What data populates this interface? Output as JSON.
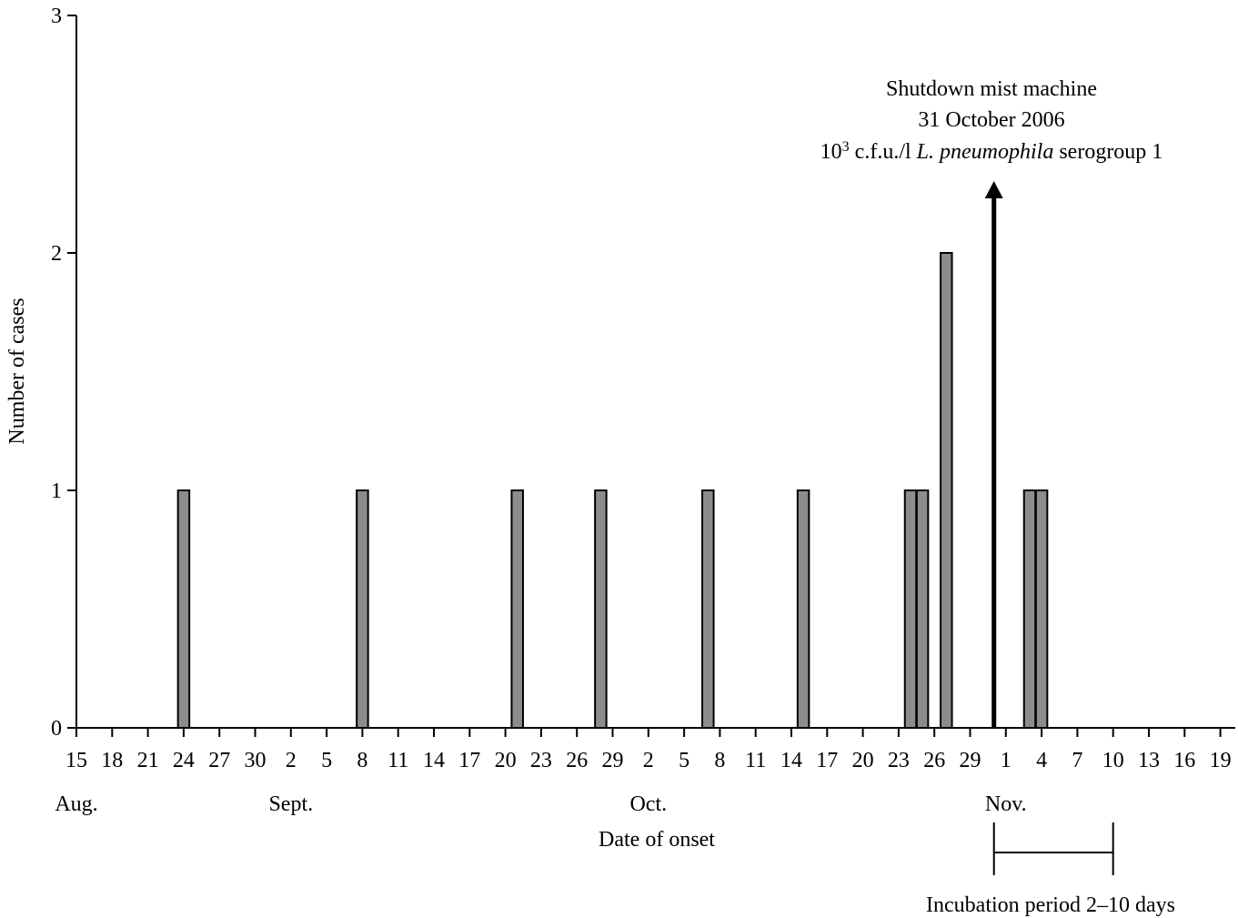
{
  "chart_data": {
    "type": "bar",
    "xlabel": "Date of onset",
    "ylabel": "Number of cases",
    "ylim": [
      0,
      3
    ],
    "yticks": [
      "0",
      "1",
      "2",
      "3"
    ],
    "x_tick_labels": [
      "15",
      "18",
      "21",
      "24",
      "27",
      "30",
      "2",
      "5",
      "8",
      "11",
      "14",
      "17",
      "20",
      "23",
      "26",
      "29",
      "2",
      "5",
      "8",
      "11",
      "14",
      "17",
      "20",
      "23",
      "26",
      "29",
      "1",
      "4",
      "7",
      "10",
      "13",
      "16",
      "19"
    ],
    "months": [
      {
        "label": "Aug.",
        "at_tick": 0
      },
      {
        "label": "Sept.",
        "at_tick": 6
      },
      {
        "label": "Oct.",
        "at_tick": 16
      },
      {
        "label": "Nov.",
        "at_tick": 26
      }
    ],
    "bars": [
      {
        "date": "24 Aug",
        "cases": 1
      },
      {
        "date": "8 Sept",
        "cases": 1
      },
      {
        "date": "21 Sept",
        "cases": 1
      },
      {
        "date": "28 Sept",
        "cases": 1
      },
      {
        "date": "7 Oct",
        "cases": 1
      },
      {
        "date": "15 Oct",
        "cases": 1
      },
      {
        "date": "24 Oct",
        "cases": 1
      },
      {
        "date": "25 Oct",
        "cases": 1
      },
      {
        "date": "27 Oct",
        "cases": 2
      },
      {
        "date": "3 Nov",
        "cases": 1
      },
      {
        "date": "4 Nov",
        "cases": 1
      }
    ],
    "annotation": {
      "line1": "Shutdown mist machine",
      "line2": "31 October 2006",
      "line3_base": "10",
      "line3_sup": "3",
      "line3_text": " c.f.u./l ",
      "line3_italic": "L. pneumophila",
      "line3_end": " serogroup 1",
      "arrow_date": "31 Oct"
    },
    "incubation": {
      "label": "Incubation period 2–10 days",
      "from_date": "31 Oct",
      "to_date": "10 Nov"
    }
  }
}
